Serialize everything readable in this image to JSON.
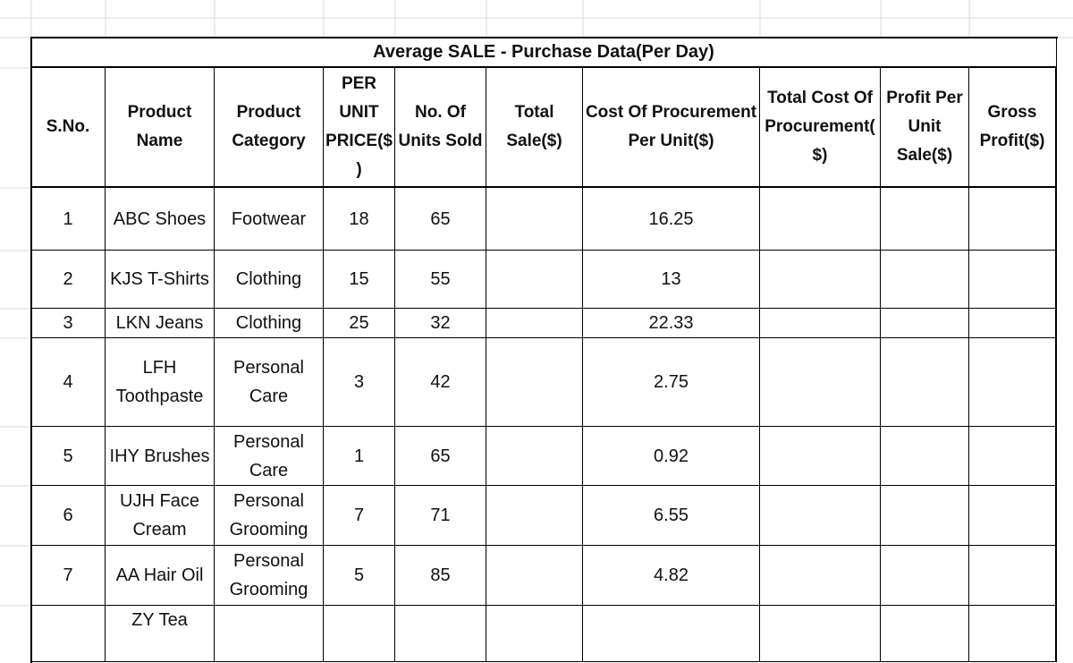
{
  "table": {
    "title": "Average SALE - Purchase Data(Per Day)",
    "headers": [
      "S.No.",
      "Product Name",
      "Product Category",
      "PER UNIT PRICE($)",
      "No. Of Units Sold",
      "Total Sale($)",
      "Cost Of Procurement Per Unit($)",
      "Total Cost Of Procurement($)",
      "Profit Per Unit Sale($)",
      "Gross Profit($)"
    ],
    "rows": [
      {
        "sno": 1,
        "name": "ABC Shoes",
        "category": "Footwear",
        "price": 18,
        "units": 65,
        "cost": 16.25
      },
      {
        "sno": 2,
        "name": "KJS T-Shirts",
        "category": "Clothing",
        "price": 15,
        "units": 55,
        "cost": 13
      },
      {
        "sno": 3,
        "name": "LKN Jeans",
        "category": "Clothing",
        "price": 25,
        "units": 32,
        "cost": 22.33
      },
      {
        "sno": 4,
        "name": "LFH Toothpaste",
        "category": "Personal Care",
        "price": 3,
        "units": 42,
        "cost": 2.75
      },
      {
        "sno": 5,
        "name": "IHY Brushes",
        "category": "Personal Care",
        "price": 1,
        "units": 65,
        "cost": 0.92
      },
      {
        "sno": 6,
        "name": "UJH Face Cream",
        "category": "Personal Grooming",
        "price": 7,
        "units": 71,
        "cost": 6.55
      },
      {
        "sno": 7,
        "name": "AA Hair Oil",
        "category": "Personal Grooming",
        "price": 5,
        "units": 85,
        "cost": 4.82
      },
      {
        "name": "ZY Tea"
      }
    ]
  }
}
